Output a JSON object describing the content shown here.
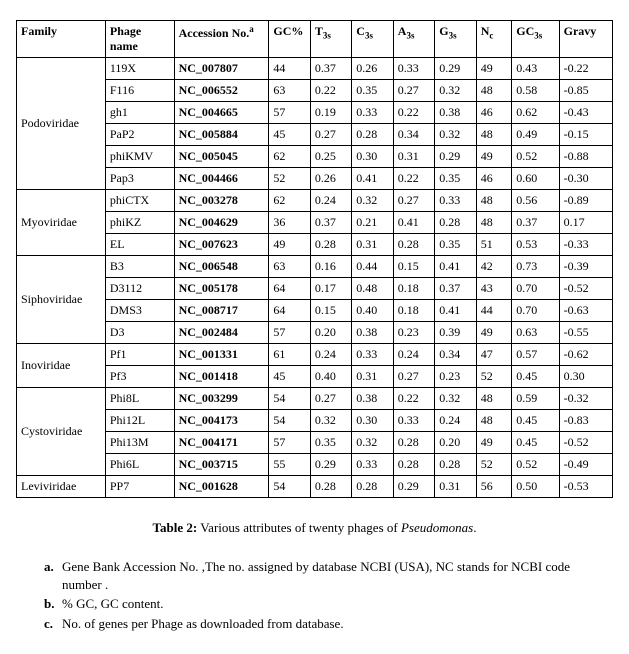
{
  "table": {
    "headers": {
      "family": "Family",
      "phage": "Phage name",
      "acc": "Accession No.",
      "acc_sup": "a",
      "gc": "GC%",
      "t3": "T",
      "t3_sub": "3s",
      "c3": "C",
      "c3_sub": "3s",
      "a3": "A",
      "a3_sub": "3s",
      "g3": "G",
      "g3_sub": "3s",
      "nc": "N",
      "nc_sub": "c",
      "gc3": "GC",
      "gc3_sub": "3s",
      "gravy": "Gravy"
    },
    "families": [
      {
        "name": "Podoviridae",
        "rows": [
          {
            "phage": "119X",
            "acc": "NC_007807",
            "gc": "44",
            "t3": "0.37",
            "c3": "0.26",
            "a3": "0.33",
            "g3": "0.29",
            "nc": "49",
            "gc3": "0.43",
            "gravy": "-0.22"
          },
          {
            "phage": "F116",
            "acc": "NC_006552",
            "gc": "63",
            "t3": "0.22",
            "c3": "0.35",
            "a3": "0.27",
            "g3": "0.32",
            "nc": "48",
            "gc3": "0.58",
            "gravy": "-0.85"
          },
          {
            "phage": "gh1",
            "acc": "NC_004665",
            "gc": "57",
            "t3": "0.19",
            "c3": "0.33",
            "a3": "0.22",
            "g3": "0.38",
            "nc": "46",
            "gc3": "0.62",
            "gravy": "-0.43"
          },
          {
            "phage": "PaP2",
            "acc": "NC_005884",
            "gc": "45",
            "t3": "0.27",
            "c3": "0.28",
            "a3": "0.34",
            "g3": "0.32",
            "nc": "48",
            "gc3": "0.49",
            "gravy": "-0.15"
          },
          {
            "phage": "phiKMV",
            "acc": "NC_005045",
            "gc": "62",
            "t3": "0.25",
            "c3": "0.30",
            "a3": "0.31",
            "g3": "0.29",
            "nc": "49",
            "gc3": "0.52",
            "gravy": "-0.88"
          },
          {
            "phage": "Pap3",
            "acc": "NC_004466",
            "gc": "52",
            "t3": "0.26",
            "c3": "0.41",
            "a3": "0.22",
            "g3": "0.35",
            "nc": "46",
            "gc3": "0.60",
            "gravy": "-0.30"
          }
        ]
      },
      {
        "name": "Myoviridae",
        "rows": [
          {
            "phage": "phiCTX",
            "acc": "NC_003278",
            "gc": "62",
            "t3": "0.24",
            "c3": "0.32",
            "a3": "0.27",
            "g3": "0.33",
            "nc": "48",
            "gc3": "0.56",
            "gravy": "-0.89"
          },
          {
            "phage": "phiKZ",
            "acc": "NC_004629",
            "gc": "36",
            "t3": "0.37",
            "c3": "0.21",
            "a3": "0.41",
            "g3": "0.28",
            "nc": "48",
            "gc3": "0.37",
            "gravy": "0.17"
          },
          {
            "phage": "EL",
            "acc": "NC_007623",
            "gc": "49",
            "t3": "0.28",
            "c3": "0.31",
            "a3": "0.28",
            "g3": "0.35",
            "nc": "51",
            "gc3": "0.53",
            "gravy": "-0.33"
          }
        ]
      },
      {
        "name": "Siphoviridae",
        "rows": [
          {
            "phage": "B3",
            "acc": "NC_006548",
            "gc": "63",
            "t3": "0.16",
            "c3": "0.44",
            "a3": "0.15",
            "g3": "0.41",
            "nc": "42",
            "gc3": "0.73",
            "gravy": "-0.39"
          },
          {
            "phage": "D3112",
            "acc": "NC_005178",
            "gc": "64",
            "t3": "0.17",
            "c3": "0.48",
            "a3": "0.18",
            "g3": "0.37",
            "nc": "43",
            "gc3": "0.70",
            "gravy": "-0.52"
          },
          {
            "phage": "DMS3",
            "acc": "NC_008717",
            "gc": "64",
            "t3": "0.15",
            "c3": "0.40",
            "a3": "0.18",
            "g3": "0.41",
            "nc": "44",
            "gc3": "0.70",
            "gravy": "-0.63"
          },
          {
            "phage": "D3",
            "acc": "NC_002484",
            "gc": "57",
            "t3": "0.20",
            "c3": "0.38",
            "a3": "0.23",
            "g3": "0.39",
            "nc": "49",
            "gc3": "0.63",
            "gravy": "-0.55"
          }
        ]
      },
      {
        "name": "Inoviridae",
        "rows": [
          {
            "phage": "Pf1",
            "acc": "NC_001331",
            "gc": "61",
            "t3": "0.24",
            "c3": "0.33",
            "a3": "0.24",
            "g3": "0.34",
            "nc": "47",
            "gc3": "0.57",
            "gravy": "-0.62"
          },
          {
            "phage": "Pf3",
            "acc": "NC_001418",
            "gc": "45",
            "t3": "0.40",
            "c3": "0.31",
            "a3": "0.27",
            "g3": "0.23",
            "nc": "52",
            "gc3": "0.45",
            "gravy": "0.30"
          }
        ]
      },
      {
        "name": "Cystoviridae",
        "rows": [
          {
            "phage": "Phi8L",
            "acc": "NC_003299",
            "gc": "54",
            "t3": "0.27",
            "c3": "0.38",
            "a3": "0.22",
            "g3": "0.32",
            "nc": "48",
            "gc3": "0.59",
            "gravy": "-0.32"
          },
          {
            "phage": "Phi12L",
            "acc": "NC_004173",
            "gc": "54",
            "t3": "0.32",
            "c3": "0.30",
            "a3": "0.33",
            "g3": "0.24",
            "nc": "48",
            "gc3": "0.45",
            "gravy": "-0.83"
          },
          {
            "phage": "Phi13M",
            "acc": "NC_004171",
            "gc": "57",
            "t3": "0.35",
            "c3": "0.32",
            "a3": "0.28",
            "g3": "0.20",
            "nc": "49",
            "gc3": "0.45",
            "gravy": "-0.52"
          },
          {
            "phage": "Phi6L",
            "acc": "NC_003715",
            "gc": "55",
            "t3": "0.29",
            "c3": "0.33",
            "a3": "0.28",
            "g3": "0.28",
            "nc": "52",
            "gc3": "0.52",
            "gravy": "-0.49"
          }
        ]
      },
      {
        "name": "Leviviridae",
        "rows": [
          {
            "phage": "PP7",
            "acc": "NC_001628",
            "gc": "54",
            "t3": "0.28",
            "c3": "0.28",
            "a3": "0.29",
            "g3": "0.31",
            "nc": "56",
            "gc3": "0.50",
            "gravy": "-0.53"
          }
        ]
      }
    ]
  },
  "caption": {
    "label": "Table 2:",
    "text_before": " Various attributes of twenty phages of ",
    "italic": "Pseudomonas",
    "text_after": "."
  },
  "notes": [
    {
      "key": "a.",
      "text": "Gene Bank Accession No. ,The no. assigned by database NCBI (USA), NC stands for NCBI code number ."
    },
    {
      "key": "b.",
      "text": "% GC, GC content."
    },
    {
      "key": "c.",
      "text": "No. of genes per Phage as downloaded from database."
    }
  ]
}
